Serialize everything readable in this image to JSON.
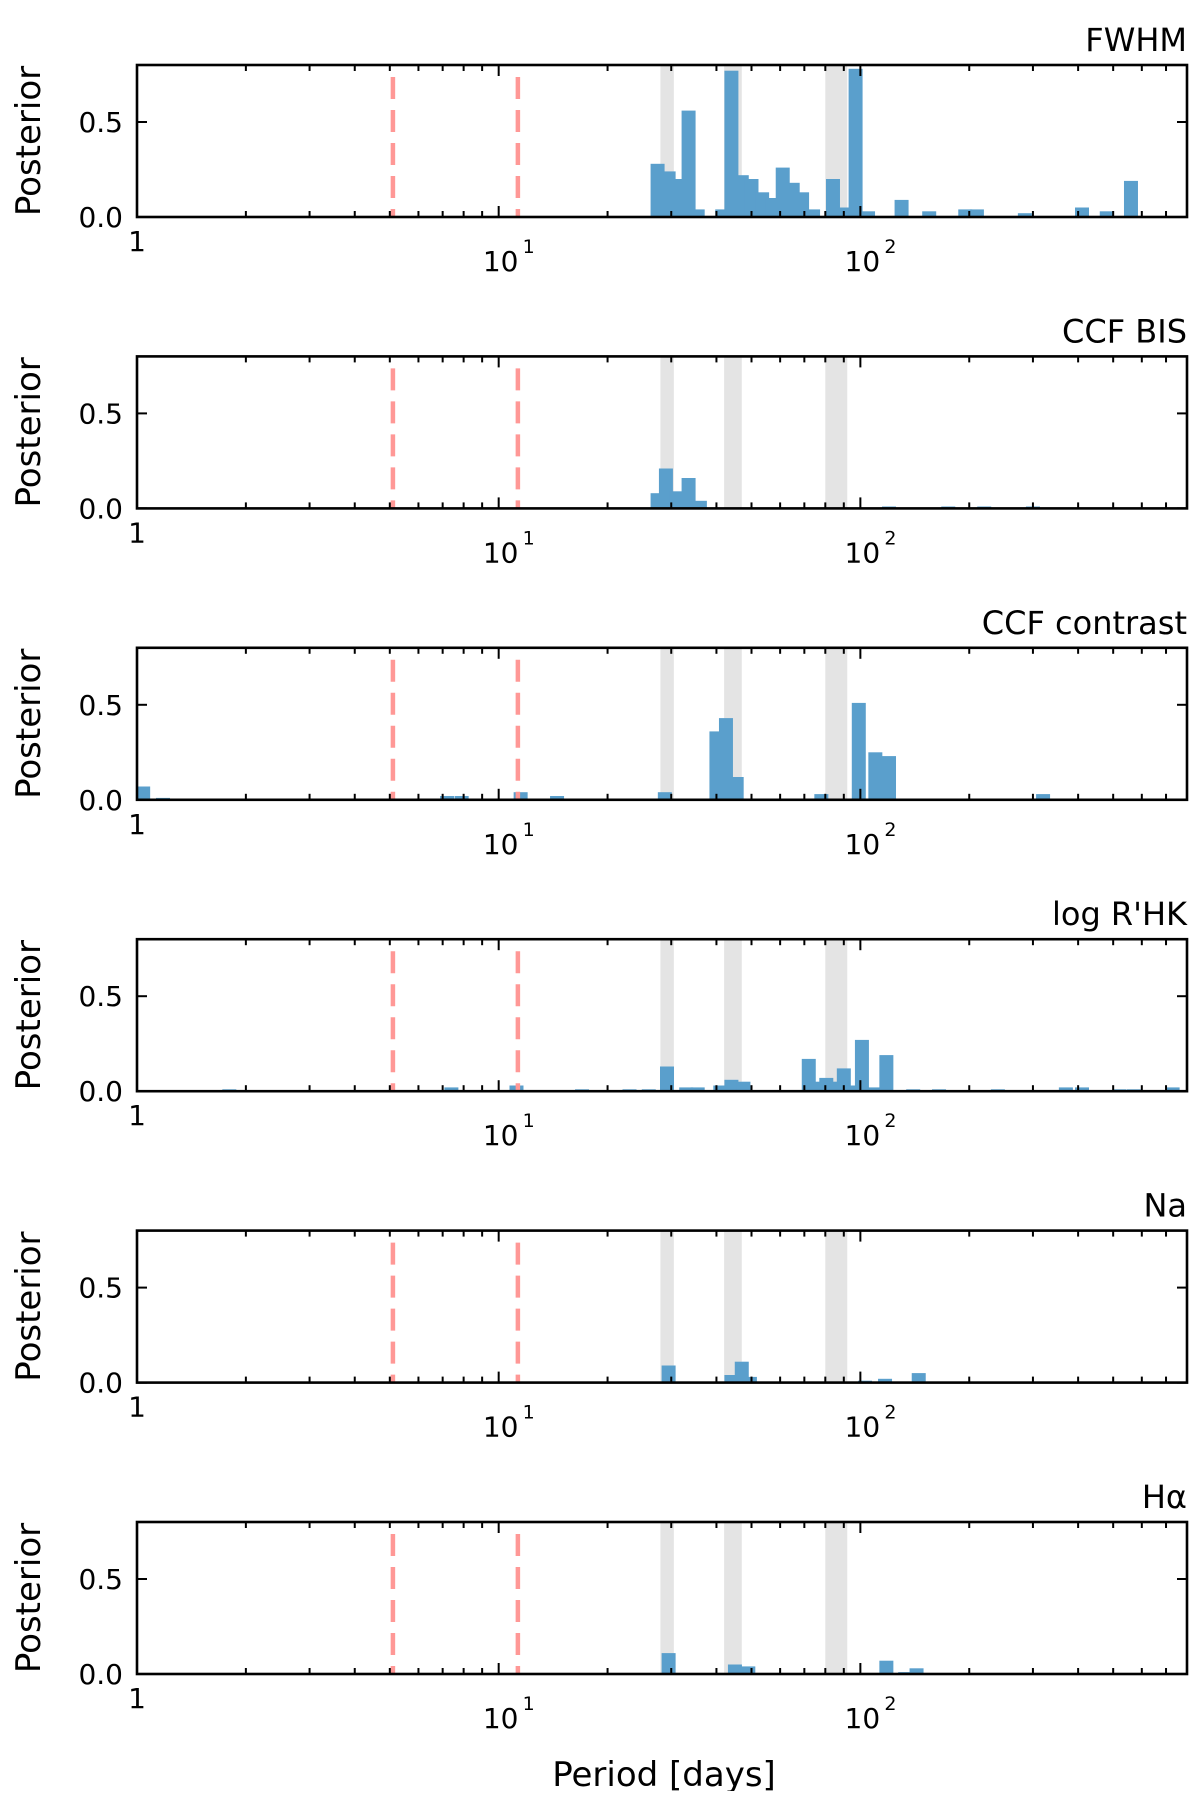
{
  "chart_data": {
    "type": "bar",
    "xlabel": "Period [days]",
    "ylabel": "Posterior",
    "xscale": "log",
    "xlim": [
      1,
      800
    ],
    "ylim": [
      0,
      0.8
    ],
    "yticks": [
      {
        "value": 0.0,
        "label": "0.0"
      },
      {
        "value": 0.5,
        "label": "0.5"
      }
    ],
    "xticks": [
      {
        "value": 1,
        "base": "1",
        "exp": ""
      },
      {
        "value": 10,
        "base": "10",
        "exp": "1"
      },
      {
        "value": 100,
        "base": "10",
        "exp": "2"
      }
    ],
    "reference_lines": [
      5.1,
      11.3
    ],
    "reference_line_color": "#ff9896",
    "shaded_bands": [
      [
        28.0,
        30.5
      ],
      [
        42.0,
        47.0
      ],
      [
        80.0,
        92.0
      ]
    ],
    "band_color": "#d9d9d9",
    "bar_color": "#5a9fcc",
    "panels": [
      {
        "title": "FWHM",
        "bars": [
          [
            27.5,
            0.28
          ],
          [
            29.5,
            0.24
          ],
          [
            31.5,
            0.2
          ],
          [
            33.5,
            0.56
          ],
          [
            35.5,
            0.04
          ],
          [
            41.5,
            0.04
          ],
          [
            44.0,
            0.77
          ],
          [
            47.0,
            0.22
          ],
          [
            50.0,
            0.2
          ],
          [
            53.5,
            0.13
          ],
          [
            57.0,
            0.1
          ],
          [
            61.0,
            0.26
          ],
          [
            65.0,
            0.18
          ],
          [
            69.0,
            0.13
          ],
          [
            74.0,
            0.04
          ],
          [
            84.0,
            0.2
          ],
          [
            90.0,
            0.05
          ],
          [
            97.0,
            0.78
          ],
          [
            105.0,
            0.03
          ],
          [
            130.0,
            0.09
          ],
          [
            155.0,
            0.03
          ],
          [
            195.0,
            0.04
          ],
          [
            210.0,
            0.04
          ],
          [
            285.0,
            0.02
          ],
          [
            410.0,
            0.05
          ],
          [
            480.0,
            0.03
          ],
          [
            560.0,
            0.19
          ]
        ]
      },
      {
        "title": "CCF BIS",
        "bars": [
          [
            27.5,
            0.08
          ],
          [
            29.0,
            0.21
          ],
          [
            31.0,
            0.09
          ],
          [
            33.5,
            0.16
          ],
          [
            36.0,
            0.04
          ],
          [
            120.0,
            0.01
          ],
          [
            175.0,
            0.01
          ],
          [
            220.0,
            0.01
          ],
          [
            300.0,
            0.01
          ]
        ]
      },
      {
        "title": "CCF contrast",
        "bars": [
          [
            1.04,
            0.07
          ],
          [
            1.18,
            0.01
          ],
          [
            7.2,
            0.02
          ],
          [
            7.9,
            0.02
          ],
          [
            11.5,
            0.04
          ],
          [
            14.5,
            0.02
          ],
          [
            28.8,
            0.04
          ],
          [
            40.0,
            0.36
          ],
          [
            42.5,
            0.43
          ],
          [
            45.5,
            0.12
          ],
          [
            78.0,
            0.03
          ],
          [
            99.0,
            0.51
          ],
          [
            110.0,
            0.25
          ],
          [
            120.0,
            0.23
          ],
          [
            320.0,
            0.03
          ]
        ]
      },
      {
        "title": "log R'HK",
        "bars": [
          [
            1.8,
            0.01
          ],
          [
            7.4,
            0.02
          ],
          [
            11.2,
            0.03
          ],
          [
            17.0,
            0.01
          ],
          [
            23.0,
            0.01
          ],
          [
            26.0,
            0.01
          ],
          [
            29.2,
            0.13
          ],
          [
            33.0,
            0.02
          ],
          [
            35.5,
            0.02
          ],
          [
            41.0,
            0.03
          ],
          [
            44.0,
            0.06
          ],
          [
            47.5,
            0.05
          ],
          [
            72.0,
            0.17
          ],
          [
            76.0,
            0.05
          ],
          [
            80.5,
            0.07
          ],
          [
            85.0,
            0.05
          ],
          [
            90.0,
            0.12
          ],
          [
            95.0,
            0.03
          ],
          [
            101.0,
            0.27
          ],
          [
            110.0,
            0.02
          ],
          [
            118.0,
            0.19
          ],
          [
            140.0,
            0.01
          ],
          [
            165.0,
            0.01
          ],
          [
            240.0,
            0.01
          ],
          [
            370.0,
            0.02
          ],
          [
            410.0,
            0.02
          ],
          [
            520.0,
            0.01
          ],
          [
            570.0,
            0.01
          ],
          [
            730.0,
            0.02
          ]
        ]
      },
      {
        "title": "Na",
        "bars": [
          [
            29.5,
            0.09
          ],
          [
            44.0,
            0.04
          ],
          [
            47.0,
            0.11
          ],
          [
            49.5,
            0.03
          ],
          [
            103.0,
            0.01
          ],
          [
            117.0,
            0.02
          ],
          [
            145.0,
            0.05
          ]
        ]
      },
      {
        "title": "Hα",
        "bars": [
          [
            29.5,
            0.11
          ],
          [
            45.0,
            0.05
          ],
          [
            49.0,
            0.04
          ],
          [
            118.0,
            0.07
          ],
          [
            133.0,
            0.01
          ],
          [
            143.0,
            0.03
          ]
        ]
      }
    ]
  }
}
